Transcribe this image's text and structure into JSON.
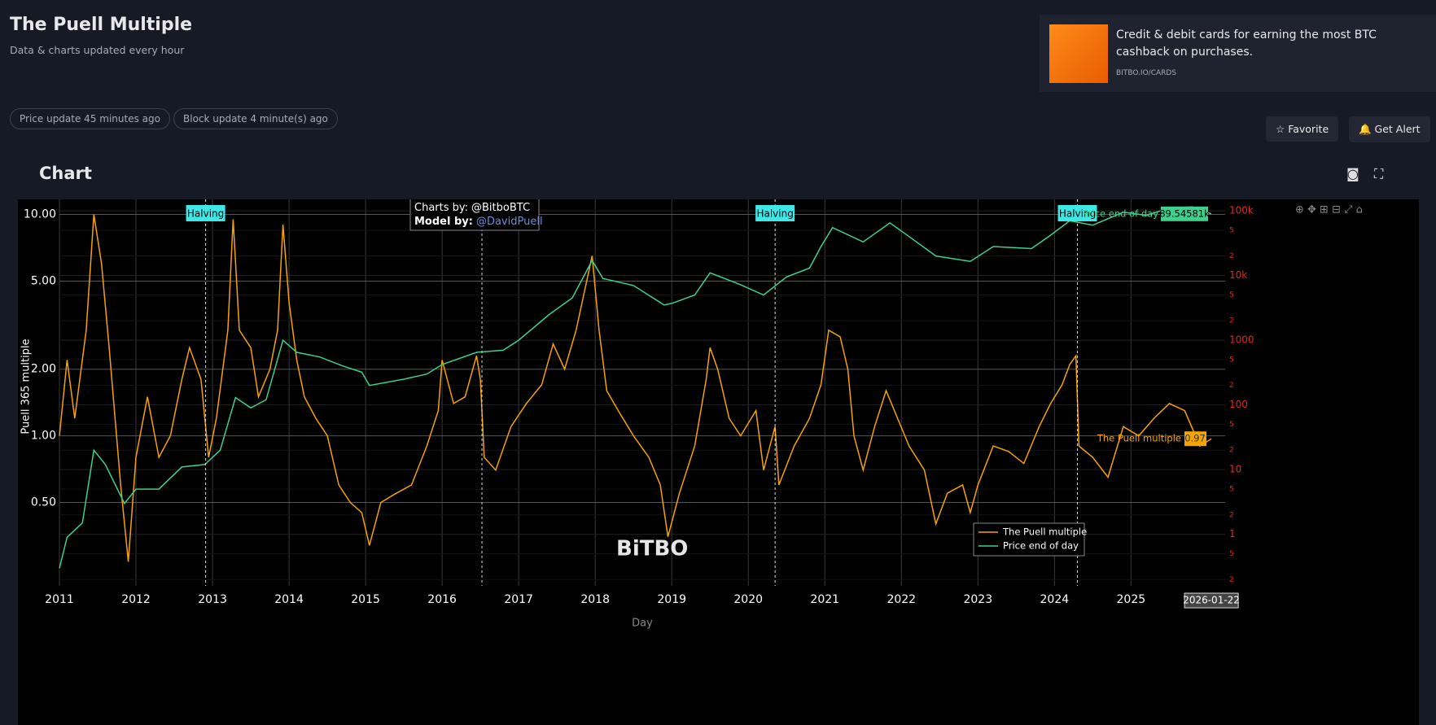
{
  "header": {
    "title": "The Puell Multiple",
    "subtitle": "Data & charts updated every hour"
  },
  "status": [
    "Price update 45 minutes ago",
    "Block update 4 minute(s) ago"
  ],
  "ad": {
    "text": "Credit & debit cards for earning the most BTC cashback on purchases.",
    "url": "BITBO.IO/CARDS"
  },
  "buttons": [
    "Favorite",
    "Get Alert"
  ],
  "section_title": "Chart",
  "chart_data": {
    "type": "line",
    "xlabel": "Day",
    "ylabel": "Puell 365 multiple",
    "log_y": true,
    "log_y2": true,
    "grid": true,
    "xlim": [
      2011.0,
      2026.23
    ],
    "xticks": [
      2011,
      2012,
      2013,
      2014,
      2015,
      2016,
      2017,
      2018,
      2019,
      2020,
      2021,
      2022,
      2023,
      2024,
      2025
    ],
    "ylim": [
      0.21,
      11.7
    ],
    "yticks": [
      {
        "value": 10,
        "label": "10.00"
      },
      {
        "value": 5,
        "label": "5.00"
      },
      {
        "value": 2,
        "label": "2.00"
      },
      {
        "value": 1,
        "label": "1.00"
      },
      {
        "value": 0.5,
        "label": "0.50"
      }
    ],
    "y2lim": [
      0.16,
      150000
    ],
    "y2ticks": [
      {
        "value": 100000,
        "label": "100k"
      },
      {
        "value": 50000,
        "label": "5"
      },
      {
        "value": 20000,
        "label": "2"
      },
      {
        "value": 10000,
        "label": "10k"
      },
      {
        "value": 5000,
        "label": "5"
      },
      {
        "value": 2000,
        "label": "2"
      },
      1000,
      {
        "value": 500,
        "label": "5"
      },
      {
        "value": 200,
        "label": "2"
      },
      100,
      {
        "value": 50,
        "label": "5"
      },
      {
        "value": 20,
        "label": "2"
      },
      10,
      {
        "value": 5,
        "label": "5"
      },
      {
        "value": 2,
        "label": "2"
      },
      1,
      {
        "value": 0.5,
        "label": "5"
      },
      {
        "value": 0.2,
        "label": "2"
      }
    ],
    "y2_color": "#e8261c",
    "legend_position": "lower right",
    "series": [
      {
        "name": "The Puell multiple",
        "color": "#f5a300",
        "axis": "y",
        "x": [
          2011.0,
          2011.1,
          2011.2,
          2011.35,
          2011.45,
          2011.55,
          2011.65,
          2011.8,
          2011.9,
          2012.0,
          2012.15,
          2012.3,
          2012.45,
          2012.6,
          2012.7,
          2012.85,
          2012.95,
          2013.05,
          2013.2,
          2013.27,
          2013.35,
          2013.5,
          2013.6,
          2013.75,
          2013.85,
          2013.92,
          2014.0,
          2014.1,
          2014.2,
          2014.35,
          2014.5,
          2014.65,
          2014.8,
          2014.95,
          2015.05,
          2015.2,
          2015.4,
          2015.6,
          2015.8,
          2015.95,
          2016.0,
          2016.15,
          2016.3,
          2016.45,
          2016.5,
          2016.55,
          2016.7,
          2016.9,
          2017.1,
          2017.3,
          2017.45,
          2017.6,
          2017.75,
          2017.96,
          2018.05,
          2018.15,
          2018.3,
          2018.5,
          2018.7,
          2018.85,
          2018.95,
          2019.1,
          2019.3,
          2019.45,
          2019.5,
          2019.6,
          2019.75,
          2019.9,
          2020.1,
          2020.2,
          2020.35,
          2020.4,
          2020.6,
          2020.8,
          2020.95,
          2021.05,
          2021.2,
          2021.3,
          2021.38,
          2021.5,
          2021.65,
          2021.8,
          2021.95,
          2022.1,
          2022.3,
          2022.45,
          2022.6,
          2022.8,
          2022.9,
          2023.0,
          2023.2,
          2023.4,
          2023.6,
          2023.8,
          2023.95,
          2024.1,
          2024.2,
          2024.28,
          2024.32,
          2024.5,
          2024.7,
          2024.9,
          2025.1,
          2025.3,
          2025.5,
          2025.7,
          2025.9,
          2026.05
        ],
        "values": [
          1.0,
          2.2,
          1.2,
          3,
          10,
          6,
          2.5,
          0.6,
          0.27,
          0.8,
          1.5,
          0.8,
          1.0,
          1.8,
          2.5,
          1.8,
          0.8,
          1.2,
          3,
          9.5,
          3,
          2.5,
          1.5,
          2,
          3,
          9,
          4,
          2.2,
          1.5,
          1.2,
          1.0,
          0.6,
          0.5,
          0.45,
          0.32,
          0.5,
          0.55,
          0.6,
          0.9,
          1.3,
          2.2,
          1.4,
          1.5,
          2.3,
          1.8,
          0.8,
          0.7,
          1.1,
          1.4,
          1.7,
          2.6,
          2.0,
          3,
          6.5,
          3,
          1.6,
          1.3,
          1.0,
          0.8,
          0.6,
          0.35,
          0.55,
          0.9,
          1.8,
          2.5,
          2.0,
          1.2,
          1.0,
          1.3,
          0.7,
          1.1,
          0.6,
          0.9,
          1.2,
          1.7,
          3.0,
          2.8,
          2.0,
          1.0,
          0.7,
          1.1,
          1.6,
          1.2,
          0.9,
          0.7,
          0.4,
          0.55,
          0.6,
          0.45,
          0.6,
          0.9,
          0.85,
          0.75,
          1.1,
          1.4,
          1.7,
          2.1,
          2.3,
          0.9,
          0.8,
          0.65,
          1.1,
          1.0,
          1.2,
          1.4,
          1.3,
          0.9,
          0.97
        ]
      },
      {
        "name": "Price end of day",
        "color": "#3ed18c",
        "axis": "y2",
        "x": [
          2011.0,
          2011.1,
          2011.3,
          2011.45,
          2011.6,
          2011.85,
          2012.0,
          2012.3,
          2012.6,
          2012.9,
          2013.1,
          2013.3,
          2013.5,
          2013.7,
          2013.92,
          2014.1,
          2014.4,
          2014.7,
          2014.95,
          2015.05,
          2015.5,
          2015.8,
          2016.0,
          2016.45,
          2016.8,
          2017.0,
          2017.4,
          2017.7,
          2017.96,
          2018.1,
          2018.5,
          2018.9,
          2019.0,
          2019.3,
          2019.5,
          2019.9,
          2020.2,
          2020.5,
          2020.8,
          2020.95,
          2021.1,
          2021.5,
          2021.85,
          2022.1,
          2022.45,
          2022.9,
          2023.2,
          2023.7,
          2023.95,
          2024.2,
          2024.5,
          2024.9,
          2025.2,
          2025.5,
          2025.8,
          2026.05
        ],
        "values": [
          0.3,
          0.9,
          1.5,
          20,
          12,
          3,
          5,
          5,
          11,
          12,
          20,
          130,
          90,
          120,
          1000,
          650,
          550,
          400,
          320,
          200,
          250,
          300,
          420,
          650,
          700,
          1000,
          2500,
          4500,
          17000,
          9000,
          7000,
          3500,
          3700,
          5000,
          11000,
          7200,
          5000,
          9500,
          13000,
          28000,
          55000,
          33000,
          65000,
          40000,
          20000,
          16500,
          28000,
          26000,
          42000,
          70000,
          60000,
          95000,
          85000,
          110000,
          115000,
          89545.81
        ]
      }
    ],
    "annotations": [
      {
        "x": 2012.91,
        "text": "Halving"
      },
      {
        "x": 2016.52,
        "text": "Halving"
      },
      {
        "x": 2020.35,
        "text": "Halving"
      },
      {
        "x": 2024.3,
        "text": "Halving"
      }
    ],
    "credits": {
      "charts_label": "Charts by:",
      "charts_by": "@BitboBTC",
      "model_label": "Model by:",
      "model_by": "@DavidPuell"
    },
    "hover": {
      "x": 2026.05,
      "date": "2026-01-22",
      "price_name": "Price end of day",
      "price": {
        "value": 89545.81,
        "label": "89.54581k"
      },
      "puell_name": "The Puell multiple",
      "puell": 0.97
    },
    "watermark": "BiTBO"
  }
}
